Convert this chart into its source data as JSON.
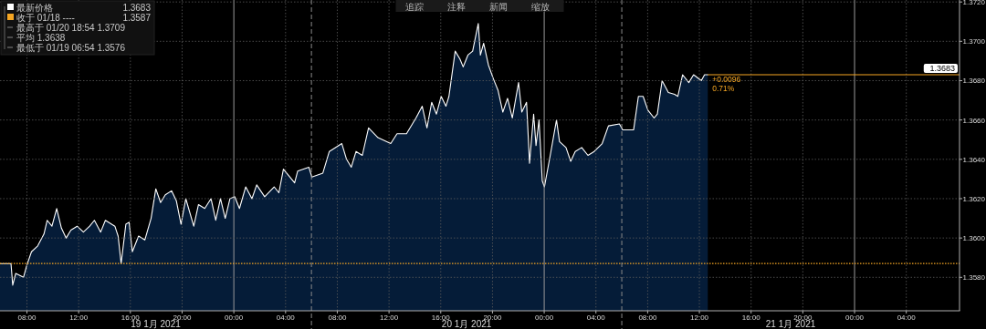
{
  "chart_data": {
    "type": "area",
    "xlim": [
      "2021-01-19T05:55",
      "2021-01-22T08:07"
    ],
    "ylim": [
      1.3563,
      1.3721
    ],
    "xticks": [
      {
        "value": "2021-01-19T08:00",
        "label": "08:00"
      },
      {
        "value": "2021-01-19T12:00",
        "label": "12:00"
      },
      {
        "value": "2021-01-19T16:00",
        "label": "16:00"
      },
      {
        "value": "2021-01-19T20:00",
        "label": "20:00"
      },
      {
        "value": "2021-01-20T00:00",
        "label": "00:00"
      },
      {
        "value": "2021-01-20T04:00",
        "label": "04:00"
      },
      {
        "value": "2021-01-20T08:00",
        "label": "08:00"
      },
      {
        "value": "2021-01-20T12:00",
        "label": "12:00"
      },
      {
        "value": "2021-01-20T16:00",
        "label": "16:00"
      },
      {
        "value": "2021-01-20T20:00",
        "label": "20:00"
      },
      {
        "value": "2021-01-21T00:00",
        "label": "00:00"
      },
      {
        "value": "2021-01-21T04:00",
        "label": "04:00"
      },
      {
        "value": "2021-01-21T08:00",
        "label": "08:00"
      },
      {
        "value": "2021-01-21T12:00",
        "label": "12:00"
      },
      {
        "value": "2021-01-21T16:00",
        "label": "16:00"
      },
      {
        "value": "2021-01-21T20:00",
        "label": "20:00"
      },
      {
        "value": "2021-01-22T00:00",
        "label": "00:00"
      },
      {
        "value": "2021-01-22T04:00",
        "label": "04:00"
      }
    ],
    "yticks": [
      {
        "value": 1.358,
        "label": "1.3580"
      },
      {
        "value": 1.36,
        "label": "1.3600"
      },
      {
        "value": 1.362,
        "label": "1.3620"
      },
      {
        "value": 1.364,
        "label": "1.3640"
      },
      {
        "value": 1.366,
        "label": "1.3660"
      },
      {
        "value": 1.368,
        "label": "1.3680"
      },
      {
        "value": 1.37,
        "label": "1.3700"
      },
      {
        "value": 1.372,
        "label": "1.3720"
      }
    ],
    "grid": true,
    "legend": "top left",
    "series": [
      {
        "name": "最新价格",
        "color": "#ffffff",
        "x": [
          "2021-01-19T05:55",
          "2021-01-19T06:46",
          "2021-01-19T06:54",
          "2021-01-19T07:08",
          "2021-01-19T07:44",
          "2021-01-19T07:59",
          "2021-01-19T08:21",
          "2021-01-19T08:50",
          "2021-01-19T09:19",
          "2021-01-19T09:34",
          "2021-01-19T09:56",
          "2021-01-19T10:18",
          "2021-01-19T10:40",
          "2021-01-19T11:02",
          "2021-01-19T11:24",
          "2021-01-19T11:53",
          "2021-01-19T12:22",
          "2021-01-19T12:51",
          "2021-01-19T13:13",
          "2021-01-19T13:42",
          "2021-01-19T14:04",
          "2021-01-19T14:48",
          "2021-01-19T15:03",
          "2021-01-19T15:17",
          "2021-01-19T15:39",
          "2021-01-19T15:54",
          "2021-01-19T16:09",
          "2021-01-19T16:38",
          "2021-01-19T17:07",
          "2021-01-19T17:36",
          "2021-01-19T17:58",
          "2021-01-19T18:20",
          "2021-01-19T18:42",
          "2021-01-19T19:11",
          "2021-01-19T19:33",
          "2021-01-19T19:55",
          "2021-01-19T20:17",
          "2021-01-19T20:54",
          "2021-01-19T21:16",
          "2021-01-19T21:45",
          "2021-01-19T22:14",
          "2021-01-19T22:36",
          "2021-01-19T22:58",
          "2021-01-19T23:20",
          "2021-01-19T23:42",
          "2021-01-20T00:04",
          "2021-01-20T00:26",
          "2021-01-20T00:55",
          "2021-01-20T01:24",
          "2021-01-20T01:46",
          "2021-01-20T02:23",
          "2021-01-20T03:07",
          "2021-01-20T03:29",
          "2021-01-20T03:50",
          "2021-01-20T04:42",
          "2021-01-20T04:56",
          "2021-01-20T05:48",
          "2021-01-20T06:02",
          "2021-01-20T06:53",
          "2021-01-20T07:23",
          "2021-01-20T08:21",
          "2021-01-20T08:43",
          "2021-01-20T09:05",
          "2021-01-20T09:27",
          "2021-01-20T09:56",
          "2021-01-20T10:25",
          "2021-01-20T11:09",
          "2021-01-20T12:08",
          "2021-01-20T12:37",
          "2021-01-20T13:21",
          "2021-01-20T14:05",
          "2021-01-20T14:34",
          "2021-01-20T14:56",
          "2021-01-20T15:18",
          "2021-01-20T15:40",
          "2021-01-20T16:02",
          "2021-01-20T16:24",
          "2021-01-20T16:38",
          "2021-01-20T17:07",
          "2021-01-20T17:29",
          "2021-01-20T17:44",
          "2021-01-20T18:06",
          "2021-01-20T18:28",
          "2021-01-20T18:54",
          "2021-01-20T19:04",
          "2021-01-20T19:19",
          "2021-01-20T19:41",
          "2021-01-20T20:04",
          "2021-01-20T20:26",
          "2021-01-20T20:48",
          "2021-01-20T21:10",
          "2021-01-20T21:32",
          "2021-01-20T22:01",
          "2021-01-20T22:16",
          "2021-01-20T22:38",
          "2021-01-20T22:52",
          "2021-01-20T23:11",
          "2021-01-20T23:22",
          "2021-01-20T23:36",
          "2021-01-20T23:51",
          "2021-01-21T00:01",
          "2021-01-21T00:28",
          "2021-01-21T00:57",
          "2021-01-21T01:11",
          "2021-01-21T01:41",
          "2021-01-21T02:03",
          "2021-01-21T02:24",
          "2021-01-21T02:54",
          "2021-01-21T03:23",
          "2021-01-21T03:52",
          "2021-01-21T04:29",
          "2021-01-21T04:58",
          "2021-01-21T05:49",
          "2021-01-21T06:04",
          "2021-01-21T06:55",
          "2021-01-21T07:17",
          "2021-01-21T07:39",
          "2021-01-21T08:01",
          "2021-01-21T08:30",
          "2021-01-21T08:45",
          "2021-01-21T09:07",
          "2021-01-21T09:36",
          "2021-01-21T10:05",
          "2021-01-21T10:20",
          "2021-01-21T10:42",
          "2021-01-21T11:11",
          "2021-01-21T11:33",
          "2021-01-21T12:09",
          "2021-01-21T12:24",
          "2021-01-21T12:39"
        ],
        "values": [
          1.3587,
          1.3587,
          1.3576,
          1.3582,
          1.358,
          1.3586,
          1.3593,
          1.3596,
          1.3602,
          1.3609,
          1.3606,
          1.3615,
          1.3605,
          1.36,
          1.3604,
          1.3606,
          1.3603,
          1.3606,
          1.3609,
          1.3603,
          1.3609,
          1.3606,
          1.3601,
          1.3587,
          1.3607,
          1.3608,
          1.3593,
          1.3601,
          1.3599,
          1.361,
          1.3625,
          1.3618,
          1.3622,
          1.3624,
          1.3619,
          1.3607,
          1.362,
          1.3606,
          1.3617,
          1.3615,
          1.362,
          1.3609,
          1.362,
          1.361,
          1.362,
          1.3621,
          1.3615,
          1.3626,
          1.362,
          1.3627,
          1.3621,
          1.3626,
          1.3623,
          1.3635,
          1.3628,
          1.3634,
          1.3636,
          1.3631,
          1.3633,
          1.3644,
          1.3648,
          1.364,
          1.3636,
          1.3644,
          1.3642,
          1.3656,
          1.3651,
          1.3648,
          1.3653,
          1.3653,
          1.3661,
          1.3667,
          1.3656,
          1.3669,
          1.3663,
          1.3672,
          1.3667,
          1.3672,
          1.3695,
          1.3691,
          1.3687,
          1.3693,
          1.3695,
          1.3709,
          1.3693,
          1.3699,
          1.3688,
          1.3681,
          1.3675,
          1.3664,
          1.3671,
          1.3661,
          1.3679,
          1.3664,
          1.3669,
          1.3638,
          1.3663,
          1.3647,
          1.366,
          1.3629,
          1.3626,
          1.3642,
          1.366,
          1.3649,
          1.3646,
          1.3639,
          1.3644,
          1.3646,
          1.3642,
          1.3644,
          1.3648,
          1.3657,
          1.3658,
          1.3655,
          1.3655,
          1.3672,
          1.3672,
          1.3665,
          1.3661,
          1.3663,
          1.368,
          1.3674,
          1.3673,
          1.3672,
          1.3683,
          1.3679,
          1.3683,
          1.368,
          1.3683,
          1.3683
        ]
      }
    ],
    "ref_lines": [
      {
        "axis": "y",
        "value": 1.3587,
        "label": "收于 01/18 ----",
        "color": "#f5a623",
        "line_style": "dotted"
      },
      {
        "axis": "y",
        "value": 1.3683,
        "label": "1.3683",
        "color": "#f5a623",
        "line_style": "solid"
      },
      {
        "axis": "x",
        "value": "2021-01-20T06:00",
        "color": "#8a8a8a",
        "line_style": "dashed"
      },
      {
        "axis": "x",
        "value": "2021-01-21T06:00",
        "color": "#8a8a8a",
        "line_style": "dashed"
      }
    ],
    "annotations": [
      "1.3683",
      "1.3587",
      "最高于 01/20 18:54 1.3709",
      "平均 1.3638",
      "最低于 01/19 06:54 1.3576",
      "追踪",
      "注释",
      "新闻",
      "缩放",
      {
        "text": "+0.0096",
        "x": "2021-01-21T12:39",
        "y": 1.3683
      },
      {
        "text": "0.71%",
        "x": "2021-01-21T12:39",
        "y": 1.3683
      },
      "19 1月 2021",
      "20 1月 2021",
      "21 1月 2021"
    ]
  }
}
